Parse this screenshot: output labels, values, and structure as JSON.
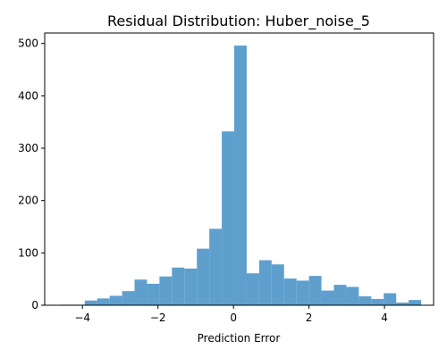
{
  "chart_data": {
    "type": "bar",
    "title": "Residual Distribution: Huber_noise_5",
    "xlabel": "Prediction Error",
    "ylabel": "",
    "xlim": [
      -5.0,
      5.3
    ],
    "ylim": [
      0,
      520
    ],
    "x_ticks": [
      -4,
      -2,
      0,
      2,
      4
    ],
    "x_tick_labels": [
      "−4",
      "−2",
      "0",
      "2",
      "4"
    ],
    "y_ticks": [
      0,
      100,
      200,
      300,
      400,
      500
    ],
    "y_tick_labels": [
      "0",
      "100",
      "200",
      "300",
      "400",
      "500"
    ],
    "bar_color": "#5f9fce",
    "grid": false,
    "bins": [
      {
        "x0": -4.6,
        "x1": -4.27,
        "count": 1
      },
      {
        "x0": -4.27,
        "x1": -3.94,
        "count": 1
      },
      {
        "x0": -3.94,
        "x1": -3.61,
        "count": 9
      },
      {
        "x0": -3.61,
        "x1": -3.28,
        "count": 13
      },
      {
        "x0": -3.28,
        "x1": -2.95,
        "count": 18
      },
      {
        "x0": -2.95,
        "x1": -2.62,
        "count": 27
      },
      {
        "x0": -2.62,
        "x1": -2.29,
        "count": 49
      },
      {
        "x0": -2.29,
        "x1": -1.96,
        "count": 41
      },
      {
        "x0": -1.96,
        "x1": -1.63,
        "count": 55
      },
      {
        "x0": -1.63,
        "x1": -1.3,
        "count": 72
      },
      {
        "x0": -1.3,
        "x1": -0.97,
        "count": 70
      },
      {
        "x0": -0.97,
        "x1": -0.64,
        "count": 108
      },
      {
        "x0": -0.64,
        "x1": -0.31,
        "count": 146
      },
      {
        "x0": -0.31,
        "x1": 0.02,
        "count": 332
      },
      {
        "x0": 0.02,
        "x1": 0.35,
        "count": 496
      },
      {
        "x0": 0.35,
        "x1": 0.68,
        "count": 61
      },
      {
        "x0": 0.68,
        "x1": 1.01,
        "count": 86
      },
      {
        "x0": 1.01,
        "x1": 1.34,
        "count": 78
      },
      {
        "x0": 1.34,
        "x1": 1.67,
        "count": 51
      },
      {
        "x0": 1.67,
        "x1": 2.0,
        "count": 47
      },
      {
        "x0": 2.0,
        "x1": 2.33,
        "count": 56
      },
      {
        "x0": 2.33,
        "x1": 2.66,
        "count": 28
      },
      {
        "x0": 2.66,
        "x1": 2.99,
        "count": 39
      },
      {
        "x0": 2.99,
        "x1": 3.32,
        "count": 35
      },
      {
        "x0": 3.32,
        "x1": 3.65,
        "count": 17
      },
      {
        "x0": 3.65,
        "x1": 3.98,
        "count": 12
      },
      {
        "x0": 3.98,
        "x1": 4.31,
        "count": 23
      },
      {
        "x0": 4.31,
        "x1": 4.64,
        "count": 5
      },
      {
        "x0": 4.64,
        "x1": 4.97,
        "count": 10
      }
    ]
  }
}
